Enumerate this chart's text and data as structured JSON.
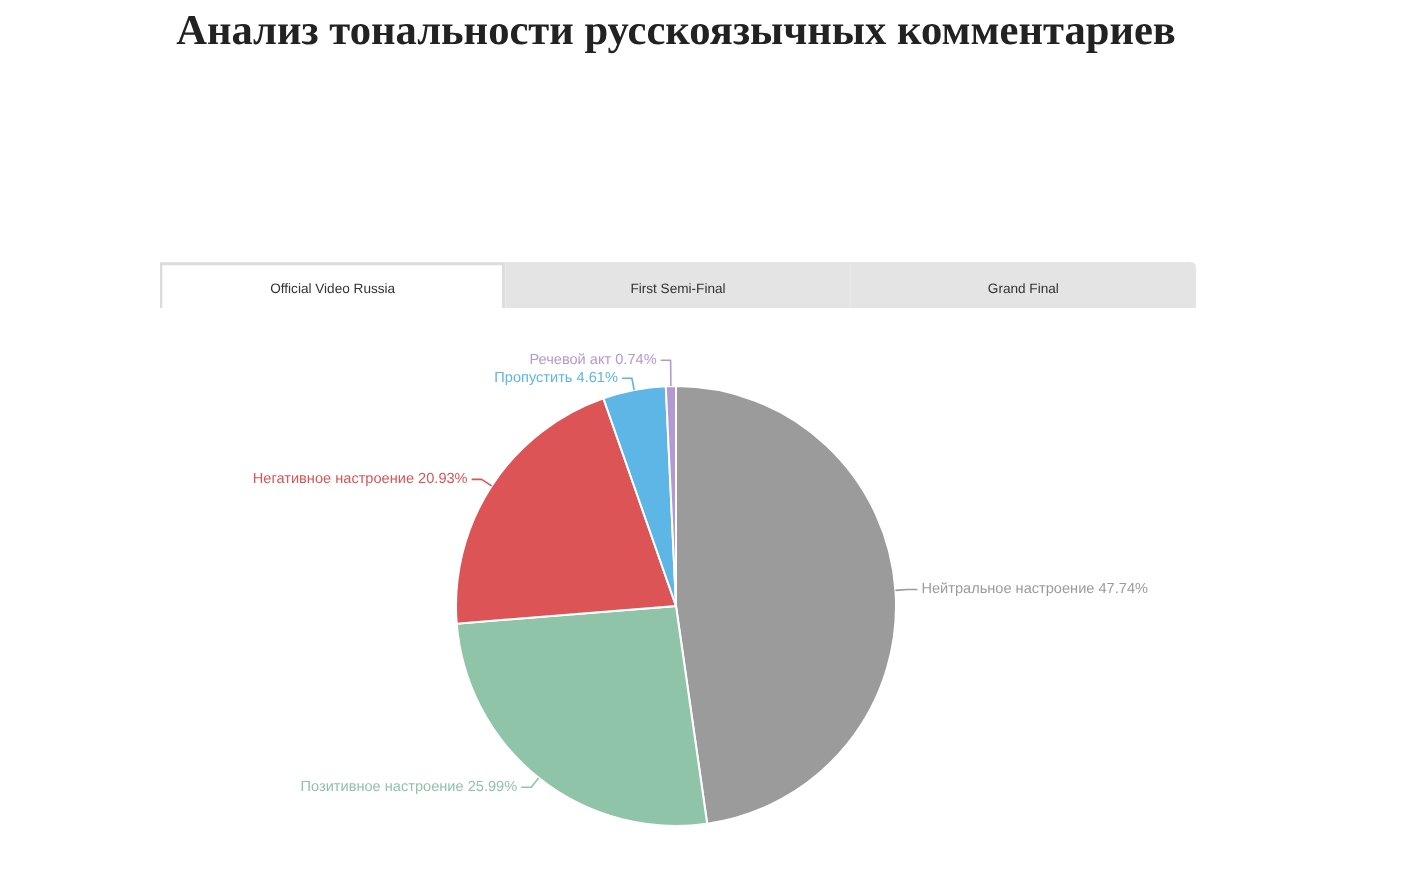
{
  "chart_data": {
    "type": "pie",
    "title": "Анализ тональности русскоязычных комментариев",
    "categories": [
      "Нейтральное настроение",
      "Позитивное настроение",
      "Негативное настроение",
      "Пропустить",
      "Речевой акт"
    ],
    "values": [
      47.74,
      25.99,
      20.93,
      4.61,
      0.74
    ],
    "colors": [
      "#9b9b9b",
      "#8fc4a9",
      "#dc5456",
      "#5db6e6",
      "#b498d4"
    ],
    "value_labels": [
      "47.74%",
      "25.99%",
      "20.93%",
      "4.61%",
      "0.74%"
    ],
    "annotations": [
      "Official Video Russia",
      "First Semi-Final",
      "Grand Final"
    ]
  }
}
